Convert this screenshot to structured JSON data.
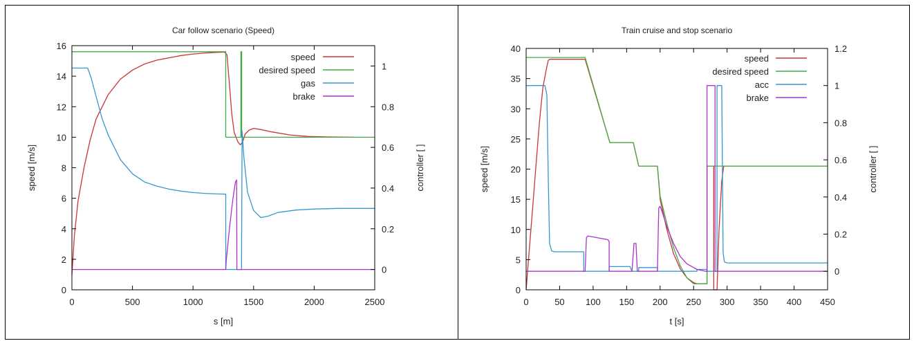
{
  "chart_data": [
    {
      "type": "line",
      "title": "Car follow scenario (Speed)",
      "xlabel": "s [m]",
      "ylabel": "speed [m/s]",
      "y2label": "controller [ ]",
      "xlim": [
        0,
        2500
      ],
      "ylim": [
        0,
        16
      ],
      "y2lim": [
        -0.1,
        1.1
      ],
      "x_ticks": [
        0,
        500,
        1000,
        1500,
        2000,
        2500
      ],
      "y_ticks": [
        0,
        2,
        4,
        6,
        8,
        10,
        12,
        14,
        16
      ],
      "y2_ticks": [
        0,
        0.2,
        0.4,
        0.6,
        0.8,
        1
      ],
      "x_tick_labels": [
        "0",
        "500",
        "1000",
        "1500",
        "2000",
        "2500"
      ],
      "y_tick_labels": [
        "0",
        "2",
        "4",
        "6",
        "8",
        "10",
        "12",
        "14",
        "16"
      ],
      "y2_tick_labels": [
        "0",
        "0.2",
        "0.4",
        "0.6",
        "0.8",
        "1"
      ],
      "legend_position": "top-right",
      "grid": false,
      "series": [
        {
          "name": "speed",
          "color": "#cc3333",
          "axis": "y",
          "points": [
            [
              0,
              1
            ],
            [
              20,
              3.5
            ],
            [
              50,
              5.8
            ],
            [
              100,
              8
            ],
            [
              150,
              9.8
            ],
            [
              200,
              11.2
            ],
            [
              300,
              12.8
            ],
            [
              400,
              13.8
            ],
            [
              500,
              14.4
            ],
            [
              600,
              14.8
            ],
            [
              700,
              15.05
            ],
            [
              800,
              15.2
            ],
            [
              900,
              15.35
            ],
            [
              1000,
              15.45
            ],
            [
              1100,
              15.52
            ],
            [
              1200,
              15.56
            ],
            [
              1260,
              15.58
            ],
            [
              1280,
              15.4
            ],
            [
              1300,
              13.5
            ],
            [
              1320,
              11.5
            ],
            [
              1340,
              10.3
            ],
            [
              1370,
              9.7
            ],
            [
              1390,
              9.5
            ],
            [
              1410,
              9.7
            ],
            [
              1430,
              10.2
            ],
            [
              1460,
              10.45
            ],
            [
              1500,
              10.58
            ],
            [
              1560,
              10.5
            ],
            [
              1650,
              10.35
            ],
            [
              1800,
              10.15
            ],
            [
              1950,
              10.05
            ],
            [
              2100,
              10.02
            ],
            [
              2330,
              10.0
            ]
          ]
        },
        {
          "name": "desired speed",
          "color": "#44aa44",
          "axis": "y",
          "points": [
            [
              0,
              15.6
            ],
            [
              1270,
              15.6
            ],
            [
              1270,
              10
            ],
            [
              1395,
              10
            ],
            [
              1395,
              15.6
            ],
            [
              1402,
              15.6
            ],
            [
              1402,
              10
            ],
            [
              2500,
              10
            ]
          ]
        },
        {
          "name": "gas",
          "color": "#3399cc",
          "axis": "y2",
          "points": [
            [
              0,
              0.99
            ],
            [
              130,
              0.99
            ],
            [
              160,
              0.94
            ],
            [
              200,
              0.85
            ],
            [
              250,
              0.74
            ],
            [
              300,
              0.66
            ],
            [
              400,
              0.54
            ],
            [
              500,
              0.47
            ],
            [
              600,
              0.43
            ],
            [
              700,
              0.41
            ],
            [
              800,
              0.395
            ],
            [
              900,
              0.385
            ],
            [
              1000,
              0.378
            ],
            [
              1100,
              0.374
            ],
            [
              1200,
              0.371
            ],
            [
              1270,
              0.37
            ],
            [
              1270,
              0
            ],
            [
              1400,
              0
            ],
            [
              1405,
              0.68
            ],
            [
              1420,
              0.55
            ],
            [
              1450,
              0.38
            ],
            [
              1500,
              0.29
            ],
            [
              1560,
              0.255
            ],
            [
              1620,
              0.262
            ],
            [
              1700,
              0.28
            ],
            [
              1850,
              0.292
            ],
            [
              2000,
              0.297
            ],
            [
              2200,
              0.3
            ],
            [
              2500,
              0.3
            ]
          ]
        },
        {
          "name": "brake",
          "color": "#aa33cc",
          "axis": "y2",
          "points": [
            [
              0,
              0
            ],
            [
              1270,
              0
            ],
            [
              1275,
              0.05
            ],
            [
              1300,
              0.2
            ],
            [
              1330,
              0.35
            ],
            [
              1350,
              0.43
            ],
            [
              1360,
              0.44
            ],
            [
              1362,
              0
            ],
            [
              2500,
              0
            ]
          ]
        }
      ]
    },
    {
      "type": "line",
      "title": "Train cruise and stop scenario",
      "xlabel": "t [s]",
      "ylabel": "speed [m/s]",
      "y2label": "controller [ ]",
      "xlim": [
        0,
        450
      ],
      "ylim": [
        0,
        40
      ],
      "y2lim": [
        -0.1,
        1.2
      ],
      "x_ticks": [
        0,
        50,
        100,
        150,
        200,
        250,
        300,
        350,
        400,
        450
      ],
      "y_ticks": [
        0,
        5,
        10,
        15,
        20,
        25,
        30,
        35,
        40
      ],
      "y2_ticks": [
        0,
        0.2,
        0.4,
        0.6,
        0.8,
        1,
        1.2
      ],
      "x_tick_labels": [
        "0",
        "50",
        "100",
        "150",
        "200",
        "250",
        "300",
        "350",
        "400",
        "450"
      ],
      "y_tick_labels": [
        "0",
        "5",
        "10",
        "15",
        "20",
        "25",
        "30",
        "35",
        "40"
      ],
      "y2_tick_labels": [
        "0",
        "0.2",
        "0.4",
        "0.6",
        "0.8",
        "1",
        "1.2"
      ],
      "legend_position": "top-right",
      "grid": false,
      "series": [
        {
          "name": "speed",
          "color": "#cc3333",
          "axis": "y",
          "points": [
            [
              0,
              0
            ],
            [
              5,
              7
            ],
            [
              10,
              14
            ],
            [
              15,
              21
            ],
            [
              20,
              28
            ],
            [
              25,
              33.5
            ],
            [
              30,
              36.5
            ],
            [
              33,
              38
            ],
            [
              35,
              38.2
            ],
            [
              88,
              38.2
            ],
            [
              125,
              24.4
            ],
            [
              160,
              24.4
            ],
            [
              168,
              20.5
            ],
            [
              196,
              20.5
            ],
            [
              200,
              15
            ],
            [
              210,
              10
            ],
            [
              220,
              6
            ],
            [
              230,
              3.5
            ],
            [
              240,
              2
            ],
            [
              250,
              1.2
            ],
            [
              255,
              1
            ],
            [
              270,
              1
            ],
            [
              270,
              20.5
            ],
            [
              280,
              20.5
            ],
            [
              280,
              0
            ],
            [
              285,
              0
            ],
            [
              288,
              10
            ],
            [
              292,
              18
            ],
            [
              295,
              20.5
            ],
            [
              450,
              20.5
            ]
          ]
        },
        {
          "name": "desired speed",
          "color": "#44aa44",
          "axis": "y",
          "points": [
            [
              0,
              38.5
            ],
            [
              88,
              38.5
            ],
            [
              125,
              24.4
            ],
            [
              160,
              24.4
            ],
            [
              168,
              20.5
            ],
            [
              196,
              20.5
            ],
            [
              200,
              15.5
            ],
            [
              210,
              11
            ],
            [
              220,
              7
            ],
            [
              230,
              4
            ],
            [
              240,
              2
            ],
            [
              250,
              1
            ],
            [
              270,
              1
            ],
            [
              270,
              20.5
            ],
            [
              450,
              20.5
            ]
          ]
        },
        {
          "name": "acc",
          "color": "#3399cc",
          "axis": "y2",
          "points": [
            [
              0,
              1
            ],
            [
              28,
              1
            ],
            [
              31,
              0.95
            ],
            [
              33,
              0.5
            ],
            [
              35,
              0.15
            ],
            [
              38,
              0.11
            ],
            [
              42,
              0.105
            ],
            [
              86,
              0.105
            ],
            [
              86,
              0
            ],
            [
              124,
              0
            ],
            [
              124,
              0.025
            ],
            [
              155,
              0.025
            ],
            [
              158,
              0
            ],
            [
              168,
              0
            ],
            [
              168,
              0.02
            ],
            [
              196,
              0.02
            ],
            [
              196,
              0
            ],
            [
              255,
              0
            ],
            [
              255,
              0.01
            ],
            [
              270,
              0.01
            ],
            [
              270,
              0
            ],
            [
              285,
              0
            ],
            [
              285,
              1
            ],
            [
              292,
              1
            ],
            [
              294,
              0.1
            ],
            [
              296,
              0.05
            ],
            [
              300,
              0.045
            ],
            [
              450,
              0.045
            ]
          ]
        },
        {
          "name": "brake",
          "color": "#aa33cc",
          "axis": "y2",
          "points": [
            [
              0,
              0
            ],
            [
              88,
              0
            ],
            [
              90,
              0.18
            ],
            [
              92,
              0.19
            ],
            [
              122,
              0.17
            ],
            [
              124,
              0.16
            ],
            [
              124,
              0
            ],
            [
              158,
              0
            ],
            [
              161,
              0.15
            ],
            [
              164,
              0.15
            ],
            [
              166,
              0
            ],
            [
              196,
              0
            ],
            [
              198,
              0.34
            ],
            [
              200,
              0.35
            ],
            [
              203,
              0.32
            ],
            [
              210,
              0.24
            ],
            [
              220,
              0.15
            ],
            [
              230,
              0.08
            ],
            [
              240,
              0.04
            ],
            [
              250,
              0.02
            ],
            [
              255,
              0.01
            ],
            [
              268,
              0
            ],
            [
              270,
              0
            ],
            [
              270,
              1
            ],
            [
              282,
              1
            ],
            [
              282,
              0
            ],
            [
              450,
              0
            ]
          ]
        }
      ]
    }
  ]
}
